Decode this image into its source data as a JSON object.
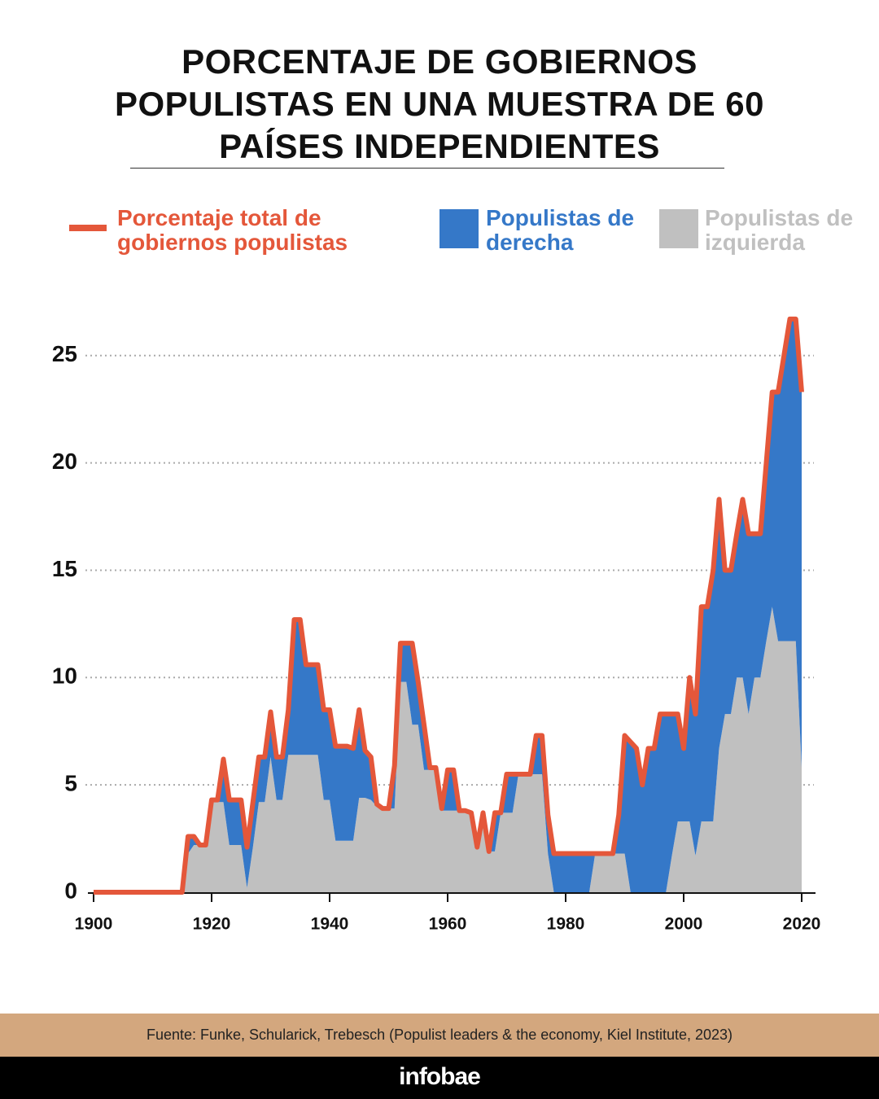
{
  "title": "PORCENTAJE DE GOBIERNOS POPULISTAS EN UNA MUESTRA DE 60 PAÍSES INDEPENDIENTES",
  "source": "Fuente: Funke, Schularick, Trebesch (Populist leaders & the economy, Kiel Institute, 2023)",
  "brand": "infobae",
  "chart_data": {
    "type": "area",
    "x": [
      1900,
      1901,
      1902,
      1903,
      1904,
      1905,
      1906,
      1907,
      1908,
      1909,
      1910,
      1911,
      1912,
      1913,
      1914,
      1915,
      1916,
      1917,
      1918,
      1919,
      1920,
      1921,
      1922,
      1923,
      1924,
      1925,
      1926,
      1927,
      1928,
      1929,
      1930,
      1931,
      1932,
      1933,
      1934,
      1935,
      1936,
      1937,
      1938,
      1939,
      1940,
      1941,
      1942,
      1943,
      1944,
      1945,
      1946,
      1947,
      1948,
      1949,
      1950,
      1951,
      1952,
      1953,
      1954,
      1955,
      1956,
      1957,
      1958,
      1959,
      1960,
      1961,
      1962,
      1963,
      1964,
      1965,
      1966,
      1967,
      1968,
      1969,
      1970,
      1971,
      1972,
      1973,
      1974,
      1975,
      1976,
      1977,
      1978,
      1979,
      1980,
      1981,
      1982,
      1983,
      1984,
      1985,
      1986,
      1987,
      1988,
      1989,
      1990,
      1991,
      1992,
      1993,
      1994,
      1995,
      1996,
      1997,
      1998,
      1999,
      2000,
      2001,
      2002,
      2003,
      2004,
      2005,
      2006,
      2007,
      2008,
      2009,
      2010,
      2011,
      2012,
      2013,
      2014,
      2015,
      2016,
      2017,
      2018,
      2019,
      2020
    ],
    "series": [
      {
        "name": "Porcentaje total de gobiernos populistas",
        "type": "line",
        "color": "#e4573a",
        "values": [
          0,
          0,
          0,
          0,
          0,
          0,
          0,
          0,
          0,
          0,
          0,
          0,
          0,
          0,
          0,
          0,
          2.6,
          2.6,
          2.2,
          2.2,
          4.3,
          4.3,
          6.2,
          4.3,
          4.3,
          4.3,
          2.1,
          4.2,
          6.3,
          6.3,
          8.4,
          6.3,
          6.3,
          8.5,
          12.7,
          12.7,
          10.6,
          10.6,
          10.6,
          8.5,
          8.5,
          6.8,
          6.8,
          6.8,
          6.7,
          8.5,
          6.6,
          6.3,
          4.1,
          3.9,
          3.9,
          5.9,
          11.6,
          11.6,
          11.6,
          9.8,
          7.8,
          5.8,
          5.8,
          3.9,
          5.7,
          5.7,
          3.8,
          3.8,
          3.7,
          2.1,
          3.7,
          1.9,
          3.7,
          3.7,
          5.5,
          5.5,
          5.5,
          5.5,
          5.5,
          7.3,
          7.3,
          3.6,
          1.8,
          1.8,
          1.8,
          1.8,
          1.8,
          1.8,
          1.8,
          1.8,
          1.8,
          1.8,
          1.8,
          3.6,
          7.3,
          7.0,
          6.7,
          5.0,
          6.7,
          6.7,
          8.3,
          8.3,
          8.3,
          8.3,
          6.7,
          10.0,
          8.3,
          13.3,
          13.3,
          15.0,
          18.3,
          15.0,
          15.0,
          16.7,
          18.3,
          16.7,
          16.7,
          16.7,
          20.0,
          23.3,
          23.3,
          25.0,
          26.7,
          26.7,
          23.3
        ]
      },
      {
        "name": "Populistas de derecha",
        "type": "area",
        "color": "#3578c8",
        "values": [
          0,
          0,
          0,
          0,
          0,
          0,
          0,
          0,
          0,
          0,
          0,
          0,
          0,
          0,
          0,
          0,
          0.8,
          0.4,
          0,
          0,
          0.1,
          0.1,
          2.0,
          2.1,
          2.1,
          2.1,
          1.9,
          2.1,
          2.1,
          2.1,
          2.1,
          2.0,
          2.0,
          2.1,
          6.3,
          6.3,
          4.2,
          4.2,
          4.2,
          4.2,
          4.2,
          4.4,
          4.4,
          4.4,
          4.3,
          4.1,
          2.2,
          2.0,
          0.1,
          0,
          0,
          2.0,
          1.8,
          1.8,
          3.8,
          2.0,
          2.1,
          0.1,
          0.1,
          0.1,
          1.9,
          1.9,
          0,
          0,
          0,
          0,
          0,
          0,
          1.8,
          0,
          1.8,
          1.8,
          0,
          0,
          0,
          1.8,
          1.8,
          1.8,
          1.8,
          1.8,
          1.8,
          1.8,
          1.8,
          1.8,
          1.8,
          0,
          0,
          0,
          0,
          1.8,
          5.5,
          7.0,
          6.7,
          5.0,
          6.7,
          6.7,
          8.3,
          8.3,
          6.6,
          5.0,
          3.4,
          6.7,
          6.6,
          10.0,
          10.0,
          11.7,
          11.6,
          6.7,
          6.7,
          6.7,
          8.3,
          8.4,
          6.7,
          6.7,
          8.3,
          10.0,
          11.6,
          13.3,
          15.0,
          15.0,
          17.5
        ]
      },
      {
        "name": "Populistas de izquierda",
        "type": "area",
        "color": "#c0c0c0",
        "values": [
          0,
          0,
          0,
          0,
          0,
          0,
          0,
          0,
          0,
          0,
          0,
          0,
          0,
          0,
          0,
          0,
          1.8,
          2.2,
          2.2,
          2.2,
          4.2,
          4.2,
          4.2,
          2.2,
          2.2,
          2.2,
          0.2,
          2.1,
          4.2,
          4.2,
          6.3,
          4.3,
          4.3,
          6.4,
          6.4,
          6.4,
          6.4,
          6.4,
          6.4,
          4.3,
          4.3,
          2.4,
          2.4,
          2.4,
          2.4,
          4.4,
          4.4,
          4.3,
          4.0,
          3.9,
          3.9,
          3.9,
          9.8,
          9.8,
          7.8,
          7.8,
          5.7,
          5.7,
          5.7,
          3.8,
          3.8,
          3.8,
          3.8,
          3.8,
          3.7,
          2.1,
          3.7,
          1.9,
          1.9,
          3.7,
          3.7,
          3.7,
          5.5,
          5.5,
          5.5,
          5.5,
          5.5,
          1.8,
          0,
          0,
          0,
          0,
          0,
          0,
          0,
          1.8,
          1.8,
          1.8,
          1.8,
          1.8,
          1.8,
          0,
          0,
          0,
          0,
          0,
          0,
          0,
          1.7,
          3.3,
          3.3,
          3.3,
          1.7,
          3.3,
          3.3,
          3.3,
          6.7,
          8.3,
          8.3,
          10.0,
          10.0,
          8.3,
          10.0,
          10.0,
          11.7,
          13.3,
          11.7,
          11.7,
          11.7,
          11.7,
          5.8
        ]
      }
    ],
    "xlim": [
      1900,
      2020
    ],
    "ylim": [
      0,
      27
    ],
    "xticks": [
      1900,
      1920,
      1940,
      1960,
      1980,
      2000,
      2020
    ],
    "yticks": [
      0,
      5,
      10,
      15,
      20,
      25
    ],
    "grid": true
  }
}
